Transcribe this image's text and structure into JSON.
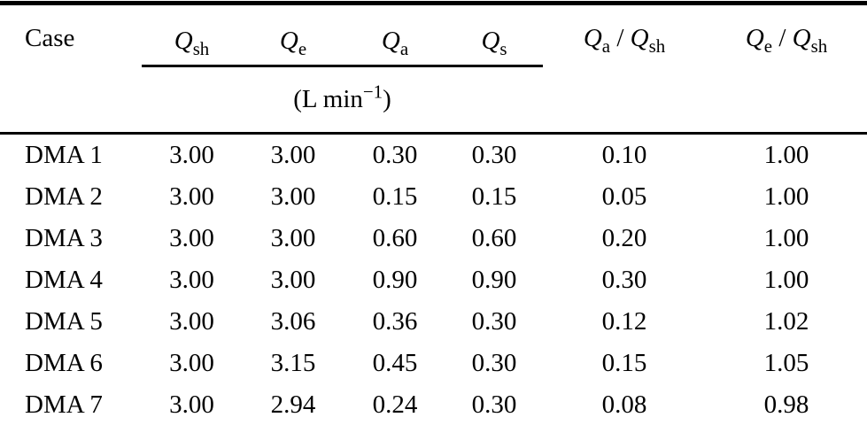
{
  "table": {
    "columns": {
      "case": "Case",
      "q": [
        {
          "symbol": "Q",
          "sub": "sh"
        },
        {
          "symbol": "Q",
          "sub": "e"
        },
        {
          "symbol": "Q",
          "sub": "a"
        },
        {
          "symbol": "Q",
          "sub": "s"
        }
      ],
      "ratios": [
        {
          "numSymbol": "Q",
          "numSub": "a",
          "slash": " / ",
          "denSymbol": "Q",
          "denSub": "sh"
        },
        {
          "numSymbol": "Q",
          "numSub": "e",
          "slash": " / ",
          "denSymbol": "Q",
          "denSub": "sh"
        }
      ]
    },
    "unit": {
      "prefix": "(L min",
      "exponent": "−1",
      "suffix": ")"
    },
    "rows": [
      {
        "case": "DMA 1",
        "values": [
          "3.00",
          "3.00",
          "0.30",
          "0.30",
          "0.10",
          "1.00"
        ]
      },
      {
        "case": "DMA 2",
        "values": [
          "3.00",
          "3.00",
          "0.15",
          "0.15",
          "0.05",
          "1.00"
        ]
      },
      {
        "case": "DMA 3",
        "values": [
          "3.00",
          "3.00",
          "0.60",
          "0.60",
          "0.20",
          "1.00"
        ]
      },
      {
        "case": "DMA 4",
        "values": [
          "3.00",
          "3.00",
          "0.90",
          "0.90",
          "0.30",
          "1.00"
        ]
      },
      {
        "case": "DMA 5",
        "values": [
          "3.00",
          "3.06",
          "0.36",
          "0.30",
          "0.12",
          "1.02"
        ]
      },
      {
        "case": "DMA 6",
        "values": [
          "3.00",
          "3.15",
          "0.45",
          "0.30",
          "0.15",
          "1.05"
        ]
      },
      {
        "case": "DMA 7",
        "values": [
          "3.00",
          "2.94",
          "0.24",
          "0.30",
          "0.08",
          "0.98"
        ]
      }
    ]
  },
  "colors": {
    "text": "#000000",
    "background": "#ffffff",
    "rule": "#000000"
  }
}
